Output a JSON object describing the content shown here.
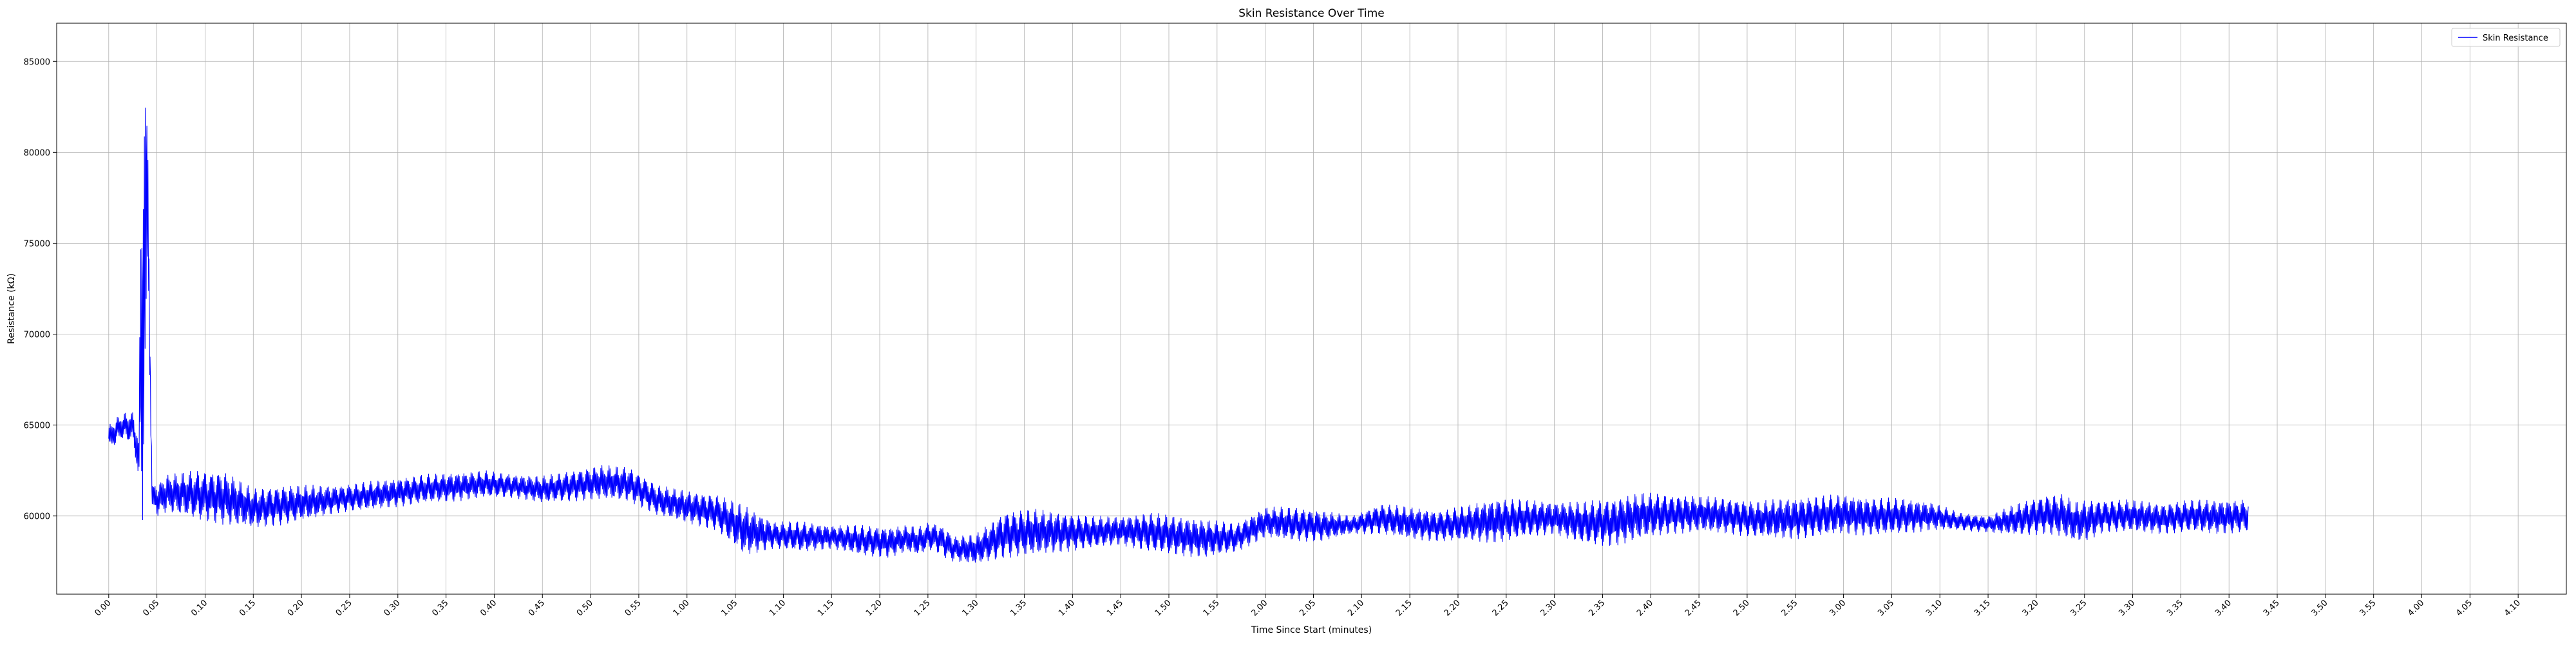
{
  "chart_data": {
    "type": "line",
    "title": "Skin Resistance Over Time",
    "xlabel": "Time Since Start (minutes)",
    "ylabel": "Resistance (kΩ)",
    "xlim": [
      -0.09,
      4.25
    ],
    "ylim": [
      55700,
      87100
    ],
    "x_ticks": [
      "0.00",
      "0.05",
      "0.10",
      "0.15",
      "0.20",
      "0.25",
      "0.30",
      "0.35",
      "0.40",
      "0.45",
      "0.50",
      "0.55",
      "1.00",
      "1.05",
      "1.10",
      "1.15",
      "1.20",
      "1.25",
      "1.30",
      "1.35",
      "1.40",
      "1.45",
      "1.50",
      "1.55",
      "2.00",
      "2.05",
      "2.10",
      "2.15",
      "2.20",
      "2.25",
      "2.30",
      "2.35",
      "2.40",
      "2.45",
      "2.50",
      "2.55",
      "3.00",
      "3.05",
      "3.10",
      "3.15",
      "3.20",
      "3.25",
      "3.30",
      "3.35",
      "3.40",
      "3.45",
      "3.50",
      "3.55",
      "4.00",
      "4.05",
      "4.10"
    ],
    "y_ticks": [
      60000,
      65000,
      70000,
      75000,
      80000,
      85000
    ],
    "grid": true,
    "legend_position": "top-right",
    "series": [
      {
        "name": "Skin Resistance",
        "color": "#0000ff",
        "envelope_x": [
          0.0,
          0.02,
          0.04,
          0.045,
          0.052,
          0.058,
          0.063,
          0.068,
          0.075,
          0.085,
          0.1,
          0.15,
          0.2,
          0.25,
          0.3,
          0.35,
          0.4,
          0.45,
          0.5,
          0.55,
          0.6,
          0.65,
          0.7,
          0.75,
          0.8,
          0.85,
          0.9,
          0.95,
          1.0,
          1.05,
          1.1,
          1.15,
          1.2,
          1.25,
          1.3,
          1.35,
          1.38,
          1.4,
          1.42,
          1.44,
          1.45,
          1.46,
          1.5,
          1.55,
          1.6,
          1.65,
          1.7,
          1.75,
          1.8,
          1.85,
          1.9,
          1.95,
          2.0,
          2.05,
          2.1,
          2.15,
          2.2,
          2.25,
          2.3,
          2.35,
          2.4,
          2.45,
          2.5,
          2.55,
          2.6,
          2.65,
          2.7,
          2.75,
          2.8,
          2.85,
          2.9,
          2.95,
          3.0,
          3.05,
          3.1,
          3.15,
          3.2,
          3.25,
          3.3,
          3.35,
          3.38,
          3.4,
          3.42,
          3.45,
          3.5,
          3.55,
          3.6,
          3.65,
          3.7
        ],
        "envelope_low": [
          63500,
          64200,
          64000,
          63500,
          61500,
          58800,
          64000,
          73000,
          60200,
          60000,
          60200,
          59800,
          59500,
          59300,
          59500,
          59800,
          60200,
          60300,
          60500,
          60700,
          60800,
          61000,
          61000,
          60700,
          60800,
          60900,
          60800,
          60000,
          59600,
          59200,
          57800,
          58200,
          58000,
          58200,
          57800,
          57700,
          58000,
          57800,
          58100,
          57900,
          57600,
          57500,
          57300,
          57700,
          57800,
          58000,
          58200,
          58400,
          58000,
          57800,
          57700,
          58000,
          58800,
          58600,
          58600,
          59000,
          59000,
          58700,
          58600,
          58600,
          58500,
          58800,
          59000,
          58400,
          58300,
          58700,
          59000,
          59100,
          59000,
          58800,
          58700,
          58800,
          59000,
          58900,
          59000,
          59200,
          59200,
          59100,
          58900,
          59000,
          58800,
          58500,
          58600,
          59100,
          59100,
          59000,
          59100,
          59000,
          59100
        ],
        "envelope_high": [
          65000,
          65600,
          65800,
          65400,
          64500,
          84800,
          86100,
          80000,
          61800,
          61800,
          62300,
          62500,
          62500,
          61500,
          61700,
          61700,
          61700,
          61900,
          62100,
          62300,
          62400,
          62500,
          62300,
          62200,
          62500,
          62800,
          62700,
          61700,
          61400,
          61200,
          60600,
          59700,
          59700,
          59500,
          59500,
          59400,
          59500,
          59400,
          59700,
          59500,
          59300,
          58900,
          59000,
          60300,
          60400,
          60200,
          60000,
          60000,
          60200,
          60000,
          59800,
          59600,
          60500,
          60500,
          60300,
          60000,
          60700,
          60500,
          60300,
          60600,
          61000,
          60900,
          60800,
          60800,
          61000,
          61300,
          61200,
          61100,
          61000,
          60800,
          61000,
          61100,
          61200,
          61000,
          61000,
          60800,
          60200,
          60000,
          60700,
          61200,
          61200,
          60800,
          60900,
          60900,
          60900,
          60700,
          60900,
          60900,
          60900
        ]
      }
    ]
  }
}
